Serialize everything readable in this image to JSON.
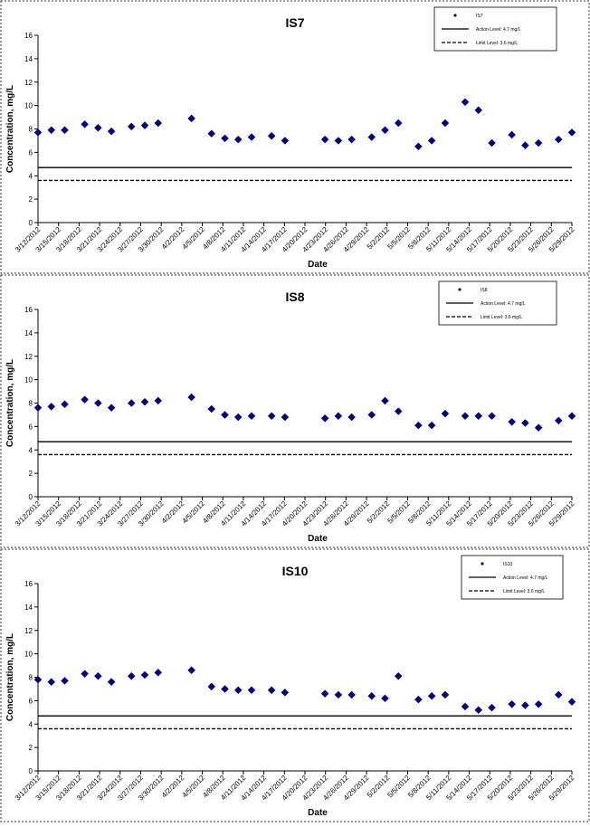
{
  "chart_data": [
    {
      "type": "scatter",
      "title": "IS7",
      "xlabel": "Date",
      "ylabel": "Concentration, mg/L",
      "ylim": [
        0,
        16
      ],
      "y_ticks": [
        0,
        2,
        4,
        6,
        8,
        10,
        12,
        14,
        16
      ],
      "x_tick_labels": [
        "3/12/2012",
        "3/15/2012",
        "3/18/2012",
        "3/21/2012",
        "3/24/2012",
        "3/27/2012",
        "3/30/2012",
        "4/2/2012",
        "4/5/2012",
        "4/8/2012",
        "4/11/2012",
        "4/14/2012",
        "4/17/2012",
        "4/20/2012",
        "4/23/2012",
        "4/26/2012",
        "4/29/2012",
        "5/2/2012",
        "5/5/2012",
        "5/8/2012",
        "5/11/2012",
        "5/14/2012",
        "5/17/2012",
        "5/20/2012",
        "5/23/2012",
        "5/26/2012",
        "5/29/2012"
      ],
      "xlim": [
        "2012-03-12",
        "2012-05-31"
      ],
      "grid": false,
      "legend_position": "top-right",
      "series": [
        {
          "name": "IS7",
          "marker": "diamond",
          "color": "#000080",
          "points": [
            {
              "x": "2012-03-12",
              "y": 7.7
            },
            {
              "x": "2012-03-14",
              "y": 7.9
            },
            {
              "x": "2012-03-16",
              "y": 7.9
            },
            {
              "x": "2012-03-19",
              "y": 8.4
            },
            {
              "x": "2012-03-21",
              "y": 8.1
            },
            {
              "x": "2012-03-23",
              "y": 7.8
            },
            {
              "x": "2012-03-26",
              "y": 8.2
            },
            {
              "x": "2012-03-28",
              "y": 8.3
            },
            {
              "x": "2012-03-30",
              "y": 8.5
            },
            {
              "x": "2012-04-04",
              "y": 8.9
            },
            {
              "x": "2012-04-07",
              "y": 7.6
            },
            {
              "x": "2012-04-09",
              "y": 7.2
            },
            {
              "x": "2012-04-11",
              "y": 7.1
            },
            {
              "x": "2012-04-13",
              "y": 7.3
            },
            {
              "x": "2012-04-16",
              "y": 7.4
            },
            {
              "x": "2012-04-18",
              "y": 7.0
            },
            {
              "x": "2012-04-24",
              "y": 7.1
            },
            {
              "x": "2012-04-26",
              "y": 7.0
            },
            {
              "x": "2012-04-28",
              "y": 7.1
            },
            {
              "x": "2012-05-01",
              "y": 7.3
            },
            {
              "x": "2012-05-03",
              "y": 7.9
            },
            {
              "x": "2012-05-05",
              "y": 8.5
            },
            {
              "x": "2012-05-08",
              "y": 6.5
            },
            {
              "x": "2012-05-10",
              "y": 7.0
            },
            {
              "x": "2012-05-12",
              "y": 8.5
            },
            {
              "x": "2012-05-15",
              "y": 10.3
            },
            {
              "x": "2012-05-17",
              "y": 9.6
            },
            {
              "x": "2012-05-19",
              "y": 6.8
            },
            {
              "x": "2012-05-22",
              "y": 7.5
            },
            {
              "x": "2012-05-24",
              "y": 6.6
            },
            {
              "x": "2012-05-26",
              "y": 6.8
            },
            {
              "x": "2012-05-29",
              "y": 7.1
            },
            {
              "x": "2012-05-31",
              "y": 7.7
            }
          ]
        },
        {
          "name": "Action Level: 4.7 mg/L",
          "type": "line",
          "style": "solid",
          "y": 4.7
        },
        {
          "name": "Limit Level: 3.6 mg/L",
          "type": "line",
          "style": "dashed",
          "y": 3.6
        }
      ]
    },
    {
      "type": "scatter",
      "title": "IS8",
      "xlabel": "Date",
      "ylabel": "Concentration, mg/L",
      "ylim": [
        0,
        16
      ],
      "y_ticks": [
        0,
        2,
        4,
        6,
        8,
        10,
        12,
        14,
        16
      ],
      "x_tick_labels": [
        "3/12/2012",
        "3/15/2012",
        "3/18/2012",
        "3/21/2012",
        "3/24/2012",
        "3/27/2012",
        "3/30/2012",
        "4/2/2012",
        "4/5/2012",
        "4/8/2012",
        "4/11/2012",
        "4/14/2012",
        "4/17/2012",
        "4/20/2012",
        "4/23/2012",
        "4/26/2012",
        "4/29/2012",
        "5/2/2012",
        "5/5/2012",
        "5/8/2012",
        "5/11/2012",
        "5/14/2012",
        "5/17/2012",
        "5/20/2012",
        "5/23/2012",
        "5/26/2012",
        "5/29/2012"
      ],
      "xlim": [
        "2012-03-12",
        "2012-05-31"
      ],
      "grid": false,
      "legend_position": "top-right",
      "series": [
        {
          "name": "IS8",
          "marker": "diamond",
          "color": "#000080",
          "points": [
            {
              "x": "2012-03-12",
              "y": 7.6
            },
            {
              "x": "2012-03-14",
              "y": 7.7
            },
            {
              "x": "2012-03-16",
              "y": 7.9
            },
            {
              "x": "2012-03-19",
              "y": 8.3
            },
            {
              "x": "2012-03-21",
              "y": 8.0
            },
            {
              "x": "2012-03-23",
              "y": 7.6
            },
            {
              "x": "2012-03-26",
              "y": 8.0
            },
            {
              "x": "2012-03-28",
              "y": 8.1
            },
            {
              "x": "2012-03-30",
              "y": 8.2
            },
            {
              "x": "2012-04-04",
              "y": 8.5
            },
            {
              "x": "2012-04-07",
              "y": 7.5
            },
            {
              "x": "2012-04-09",
              "y": 7.0
            },
            {
              "x": "2012-04-11",
              "y": 6.8
            },
            {
              "x": "2012-04-13",
              "y": 6.9
            },
            {
              "x": "2012-04-16",
              "y": 6.9
            },
            {
              "x": "2012-04-18",
              "y": 6.8
            },
            {
              "x": "2012-04-24",
              "y": 6.7
            },
            {
              "x": "2012-04-26",
              "y": 6.9
            },
            {
              "x": "2012-04-28",
              "y": 6.8
            },
            {
              "x": "2012-05-01",
              "y": 7.0
            },
            {
              "x": "2012-05-03",
              "y": 8.2
            },
            {
              "x": "2012-05-05",
              "y": 7.3
            },
            {
              "x": "2012-05-08",
              "y": 6.1
            },
            {
              "x": "2012-05-10",
              "y": 6.1
            },
            {
              "x": "2012-05-12",
              "y": 7.1
            },
            {
              "x": "2012-05-15",
              "y": 6.9
            },
            {
              "x": "2012-05-17",
              "y": 6.9
            },
            {
              "x": "2012-05-19",
              "y": 6.9
            },
            {
              "x": "2012-05-22",
              "y": 6.4
            },
            {
              "x": "2012-05-24",
              "y": 6.3
            },
            {
              "x": "2012-05-26",
              "y": 5.9
            },
            {
              "x": "2012-05-29",
              "y": 6.5
            },
            {
              "x": "2012-05-31",
              "y": 6.9
            }
          ]
        },
        {
          "name": "Action Level: 4.7 mg/L",
          "type": "line",
          "style": "solid",
          "y": 4.7
        },
        {
          "name": "Limit Level: 3.6 mg/L",
          "type": "line",
          "style": "dashed",
          "y": 3.6
        }
      ]
    },
    {
      "type": "scatter",
      "title": "IS10",
      "xlabel": "Date",
      "ylabel": "Concentration, mg/L",
      "ylim": [
        0,
        16
      ],
      "y_ticks": [
        0,
        2,
        4,
        6,
        8,
        10,
        12,
        14,
        16
      ],
      "x_tick_labels": [
        "3/12/2012",
        "3/15/2012",
        "3/18/2012",
        "3/21/2012",
        "3/24/2012",
        "3/27/2012",
        "3/30/2012",
        "4/2/2012",
        "4/5/2012",
        "4/8/2012",
        "4/11/2012",
        "4/14/2012",
        "4/17/2012",
        "4/20/2012",
        "4/23/2012",
        "4/26/2012",
        "4/29/2012",
        "5/2/2012",
        "5/5/2012",
        "5/8/2012",
        "5/11/2012",
        "5/14/2012",
        "5/17/2012",
        "5/20/2012",
        "5/23/2012",
        "5/26/2012",
        "5/29/2012"
      ],
      "xlim": [
        "2012-03-12",
        "2012-05-31"
      ],
      "grid": false,
      "legend_position": "top-right",
      "series": [
        {
          "name": "IS10",
          "marker": "diamond",
          "color": "#000080",
          "points": [
            {
              "x": "2012-03-12",
              "y": 7.8
            },
            {
              "x": "2012-03-14",
              "y": 7.6
            },
            {
              "x": "2012-03-16",
              "y": 7.7
            },
            {
              "x": "2012-03-19",
              "y": 8.3
            },
            {
              "x": "2012-03-21",
              "y": 8.1
            },
            {
              "x": "2012-03-23",
              "y": 7.6
            },
            {
              "x": "2012-03-26",
              "y": 8.1
            },
            {
              "x": "2012-03-28",
              "y": 8.2
            },
            {
              "x": "2012-03-30",
              "y": 8.4
            },
            {
              "x": "2012-04-04",
              "y": 8.6
            },
            {
              "x": "2012-04-07",
              "y": 7.2
            },
            {
              "x": "2012-04-09",
              "y": 7.0
            },
            {
              "x": "2012-04-11",
              "y": 6.9
            },
            {
              "x": "2012-04-13",
              "y": 6.9
            },
            {
              "x": "2012-04-16",
              "y": 6.9
            },
            {
              "x": "2012-04-18",
              "y": 6.7
            },
            {
              "x": "2012-04-24",
              "y": 6.6
            },
            {
              "x": "2012-04-26",
              "y": 6.5
            },
            {
              "x": "2012-04-28",
              "y": 6.5
            },
            {
              "x": "2012-05-01",
              "y": 6.4
            },
            {
              "x": "2012-05-03",
              "y": 6.2
            },
            {
              "x": "2012-05-05",
              "y": 8.1
            },
            {
              "x": "2012-05-08",
              "y": 6.1
            },
            {
              "x": "2012-05-10",
              "y": 6.4
            },
            {
              "x": "2012-05-12",
              "y": 6.5
            },
            {
              "x": "2012-05-15",
              "y": 5.5
            },
            {
              "x": "2012-05-17",
              "y": 5.2
            },
            {
              "x": "2012-05-19",
              "y": 5.4
            },
            {
              "x": "2012-05-22",
              "y": 5.7
            },
            {
              "x": "2012-05-24",
              "y": 5.6
            },
            {
              "x": "2012-05-26",
              "y": 5.7
            },
            {
              "x": "2012-05-29",
              "y": 6.5
            },
            {
              "x": "2012-05-31",
              "y": 5.9
            }
          ]
        },
        {
          "name": "Action Level: 4.7 mg/L",
          "type": "line",
          "style": "solid",
          "y": 4.7
        },
        {
          "name": "Limit Level: 3.6 mg/L",
          "type": "line",
          "style": "dashed",
          "y": 3.6
        }
      ]
    }
  ]
}
